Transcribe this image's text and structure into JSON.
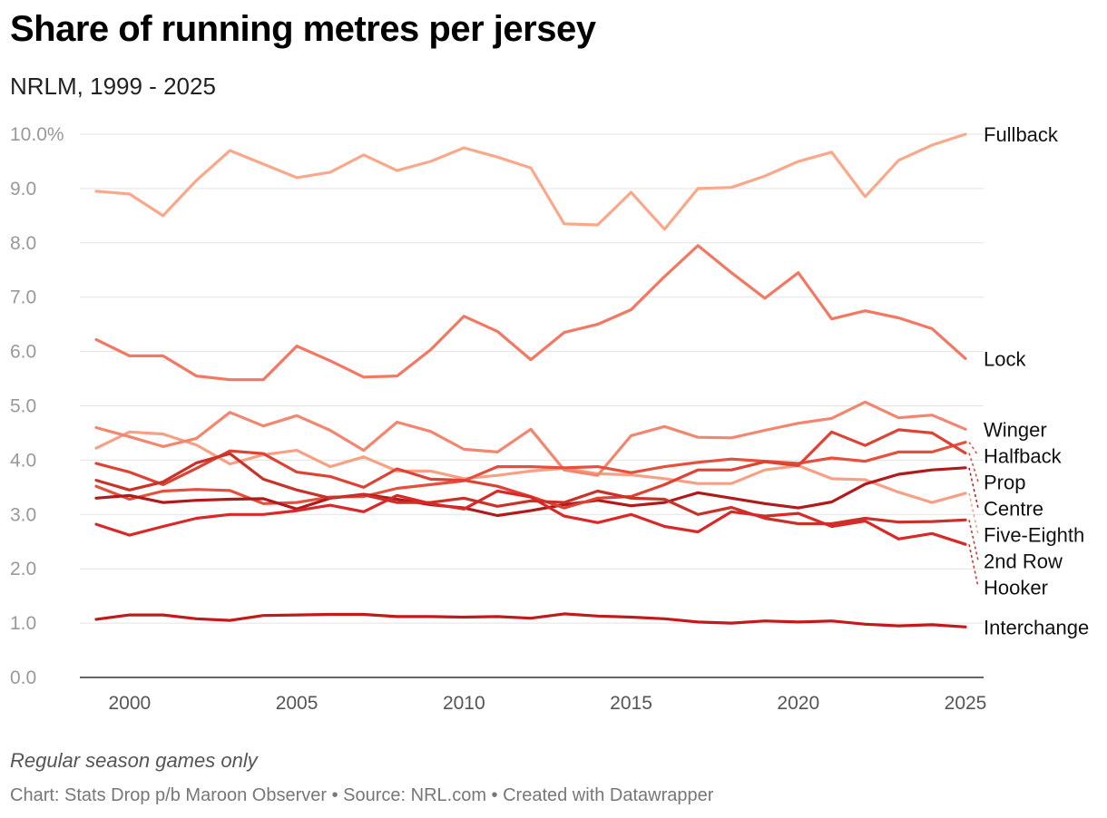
{
  "title": "Share of running metres per jersey",
  "subtitle": "NRLM, 1999 - 2025",
  "note": "Regular season games only",
  "credit": "Chart: Stats Drop p/b Maroon Observer • Source: NRL.com • Created with Datawrapper",
  "chart_data": {
    "type": "line",
    "x": [
      1999,
      2000,
      2001,
      2002,
      2003,
      2004,
      2005,
      2006,
      2007,
      2008,
      2009,
      2010,
      2011,
      2012,
      2013,
      2014,
      2015,
      2016,
      2017,
      2018,
      2019,
      2020,
      2021,
      2022,
      2023,
      2024,
      2025
    ],
    "xticks": [
      2000,
      2005,
      2010,
      2015,
      2020,
      2025
    ],
    "yticks": [
      0,
      1,
      2,
      3,
      4,
      5,
      6,
      7,
      8,
      9,
      10
    ],
    "ytick_labels": [
      "0.0",
      "1.0",
      "2.0",
      "3.0",
      "4.0",
      "5.0",
      "6.0",
      "7.0",
      "8.0",
      "9.0",
      "10.0%"
    ],
    "ylim": [
      0,
      10
    ],
    "xlim": [
      1999,
      2025
    ],
    "grid": true,
    "legend": "direct labels at right end of lines",
    "series": [
      {
        "name": "Fullback",
        "color": "#f9a98a",
        "values": [
          8.95,
          8.9,
          8.5,
          9.15,
          9.7,
          9.45,
          9.2,
          9.3,
          9.62,
          9.33,
          9.5,
          9.75,
          9.58,
          9.38,
          8.35,
          8.33,
          8.93,
          8.25,
          9.0,
          9.02,
          9.23,
          9.5,
          9.67,
          8.85,
          9.52,
          9.8,
          10.0
        ]
      },
      {
        "name": "Lock",
        "color": "#f37863",
        "values": [
          6.22,
          5.92,
          5.92,
          5.55,
          5.48,
          5.48,
          6.1,
          5.83,
          5.53,
          5.55,
          6.03,
          6.65,
          6.37,
          5.85,
          6.35,
          6.5,
          6.77,
          7.38,
          7.95,
          7.45,
          6.98,
          7.45,
          6.6,
          6.75,
          6.62,
          6.42,
          5.87
        ]
      },
      {
        "name": "Five-Eighth",
        "color": "#f7a084",
        "values": [
          4.22,
          4.52,
          4.48,
          4.28,
          3.93,
          4.1,
          4.18,
          3.88,
          4.06,
          3.8,
          3.8,
          3.66,
          3.72,
          3.8,
          3.85,
          3.75,
          3.73,
          3.66,
          3.57,
          3.57,
          3.82,
          3.9,
          3.66,
          3.64,
          3.41,
          3.22,
          3.39
        ]
      },
      {
        "name": "Winger",
        "color": "#f2866e",
        "values": [
          4.6,
          4.43,
          4.25,
          4.4,
          4.88,
          4.63,
          4.82,
          4.55,
          4.18,
          4.7,
          4.53,
          4.2,
          4.15,
          4.57,
          3.82,
          3.72,
          4.45,
          4.62,
          4.42,
          4.41,
          4.55,
          4.68,
          4.77,
          5.07,
          4.78,
          4.83,
          4.57
        ]
      },
      {
        "name": "Halfback",
        "color": "#e5503d",
        "values": [
          3.52,
          3.28,
          3.43,
          3.46,
          3.44,
          3.2,
          3.22,
          3.32,
          3.33,
          3.48,
          3.55,
          3.62,
          3.88,
          3.88,
          3.86,
          3.88,
          3.77,
          3.88,
          3.96,
          4.02,
          3.98,
          3.94,
          4.04,
          3.98,
          4.15,
          4.15,
          4.33
        ]
      },
      {
        "name": "Centre",
        "color": "#b01a1a",
        "values": [
          3.3,
          3.35,
          3.22,
          3.26,
          3.28,
          3.29,
          3.1,
          3.3,
          3.37,
          3.28,
          3.18,
          3.12,
          2.98,
          3.07,
          3.18,
          3.26,
          3.16,
          3.22,
          3.4,
          3.3,
          3.2,
          3.12,
          3.23,
          3.56,
          3.74,
          3.82,
          3.86
        ]
      },
      {
        "name": "Prop",
        "color": "#dd4334",
        "values": [
          3.94,
          3.78,
          3.55,
          3.85,
          4.17,
          4.12,
          3.78,
          3.7,
          3.5,
          3.84,
          3.65,
          3.63,
          3.52,
          3.33,
          3.12,
          3.3,
          3.33,
          3.55,
          3.82,
          3.82,
          3.97,
          3.9,
          4.52,
          4.27,
          4.56,
          4.5,
          4.13
        ]
      },
      {
        "name": "2nd Row",
        "color": "#c83228",
        "values": [
          3.63,
          3.45,
          3.6,
          3.95,
          4.12,
          3.65,
          3.45,
          3.3,
          3.36,
          3.22,
          3.22,
          3.3,
          3.15,
          3.25,
          3.22,
          3.43,
          3.3,
          3.28,
          3.0,
          3.13,
          2.93,
          2.83,
          2.83,
          2.93,
          2.86,
          2.87,
          2.9
        ]
      },
      {
        "name": "Hooker",
        "color": "#d92828",
        "values": [
          2.82,
          2.62,
          2.78,
          2.93,
          3.0,
          3.0,
          3.07,
          3.17,
          3.05,
          3.35,
          3.2,
          3.1,
          3.43,
          3.32,
          2.97,
          2.85,
          3.0,
          2.78,
          2.68,
          3.05,
          2.97,
          3.02,
          2.78,
          2.88,
          2.55,
          2.65,
          2.45
        ]
      },
      {
        "name": "Interchange",
        "color": "#c21a1a",
        "values": [
          1.07,
          1.15,
          1.15,
          1.08,
          1.05,
          1.14,
          1.15,
          1.16,
          1.16,
          1.12,
          1.12,
          1.11,
          1.12,
          1.09,
          1.17,
          1.13,
          1.11,
          1.08,
          1.02,
          1.0,
          1.04,
          1.02,
          1.04,
          0.98,
          0.95,
          0.97,
          0.93
        ]
      }
    ]
  }
}
